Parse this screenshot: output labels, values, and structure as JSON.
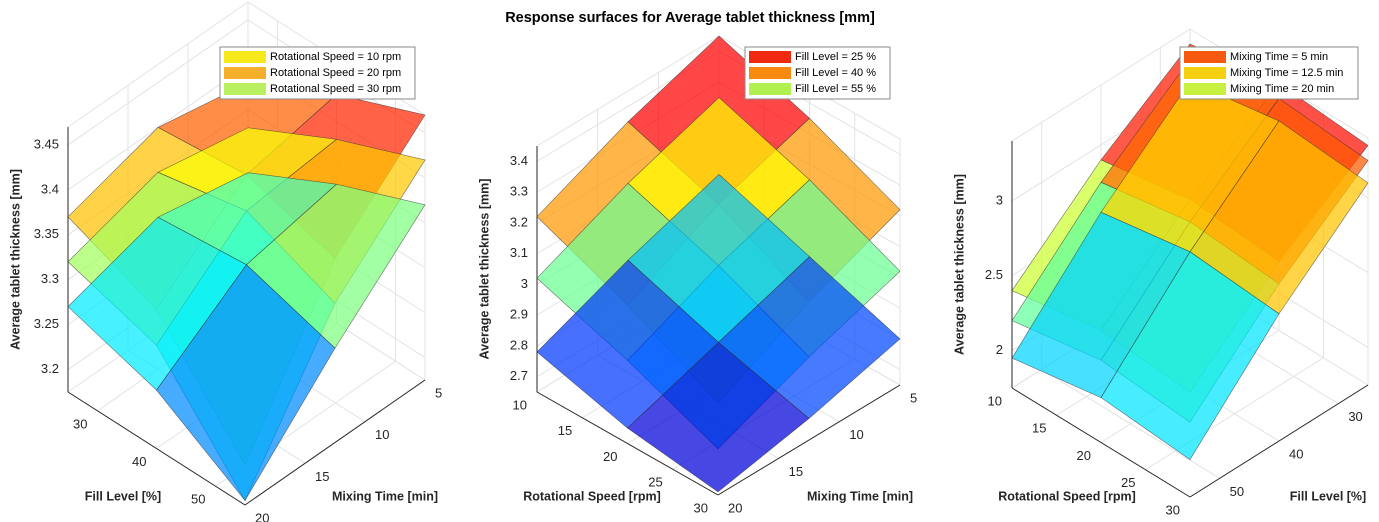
{
  "title": "Response surfaces for Average tablet thickness [mm]",
  "chart_data": [
    {
      "type": "surface3d",
      "xlabel": "Fill Level [%]",
      "ylabel": "Mixing Time [min]",
      "zlabel": "Average tablet thickness [mm]",
      "xlim": [
        25,
        55
      ],
      "ylim": [
        5,
        20
      ],
      "zlim": [
        3.175,
        3.47
      ],
      "xticks": [
        30,
        40,
        50
      ],
      "yticks": [
        5,
        10,
        15,
        20
      ],
      "zticks": [
        3.2,
        3.25,
        3.3,
        3.35,
        3.4,
        3.45
      ],
      "grid": true,
      "legend": "upper right",
      "x": [
        25,
        40,
        55
      ],
      "y": [
        5,
        12.5,
        20
      ],
      "series": [
        {
          "name": "Rotational Speed = 10 rpm",
          "color": "#f7e81c",
          "values": [
            [
              3.38,
              3.4,
              3.37
            ],
            [
              3.43,
              3.41,
              3.33
            ],
            [
              3.47,
              3.38,
              3.22
            ]
          ]
        },
        {
          "name": "Rotational Speed = 20 rpm",
          "color": "#f5b02b",
          "values": [
            [
              3.33,
              3.35,
              3.32
            ],
            [
              3.38,
              3.37,
              3.29
            ],
            [
              3.42,
              3.33,
              3.18
            ]
          ]
        },
        {
          "name": "Rotational Speed = 30 rpm",
          "color": "#b8f060",
          "values": [
            [
              3.28,
              3.3,
              3.27
            ],
            [
              3.33,
              3.31,
              3.24
            ],
            [
              3.37,
              3.28,
              3.18
            ]
          ]
        }
      ]
    },
    {
      "type": "surface3d",
      "xlabel": "Rotational Speed [rpm]",
      "ylabel": "Mixing Time [min]",
      "zlabel": "Average tablet thickness [mm]",
      "xlim": [
        10,
        30
      ],
      "ylim": [
        5,
        20
      ],
      "zlim": [
        2.65,
        3.45
      ],
      "xticks": [
        10,
        15,
        20,
        25,
        30
      ],
      "yticks": [
        5,
        10,
        15,
        20
      ],
      "zticks": [
        2.7,
        2.8,
        2.9,
        3,
        3.1,
        3.2,
        3.3,
        3.4
      ],
      "grid": true,
      "legend": "upper right",
      "x": [
        10,
        20,
        30
      ],
      "y": [
        5,
        12.5,
        20
      ],
      "series": [
        {
          "name": "Fill Level = 25 %",
          "color": "#f02a10",
          "values": [
            [
              3.45,
              3.35,
              3.22
            ],
            [
              3.35,
              3.25,
              3.1
            ],
            [
              3.22,
              3.1,
              2.95
            ]
          ]
        },
        {
          "name": "Fill Level = 40 %",
          "color": "#f98a10",
          "values": [
            [
              3.25,
              3.15,
              3.02
            ],
            [
              3.15,
              3.05,
              2.92
            ],
            [
              3.02,
              2.92,
              2.8
            ]
          ]
        },
        {
          "name": "Fill Level = 55 %",
          "color": "#b0f050",
          "values": [
            [
              3.0,
              2.9,
              2.78
            ],
            [
              2.9,
              2.8,
              2.7
            ],
            [
              2.8,
              2.72,
              2.66
            ]
          ]
        }
      ]
    },
    {
      "type": "surface3d",
      "xlabel": "Rotational Speed [rpm]",
      "ylabel": "Fill Level [%]",
      "zlabel": "Average tablet thickness [mm]",
      "xlim": [
        10,
        30
      ],
      "ylim": [
        25,
        55
      ],
      "zlim": [
        1.75,
        3.4
      ],
      "xticks": [
        10,
        15,
        20,
        25,
        30
      ],
      "yticks": [
        30,
        40,
        50
      ],
      "zticks": [
        2,
        2.5,
        3
      ],
      "grid": true,
      "legend": "upper right",
      "x": [
        10,
        20,
        30
      ],
      "y": [
        25,
        40,
        55
      ],
      "series": [
        {
          "name": "Mixing Time = 5 min",
          "color": "#f55a10",
          "values": [
            [
              3.3,
              2.9,
              2.4
            ],
            [
              3.4,
              3.0,
              2.5
            ],
            [
              3.35,
              2.95,
              2.45
            ]
          ]
        },
        {
          "name": "Mixing Time = 12.5 min",
          "color": "#f5d010",
          "values": [
            [
              3.2,
              2.75,
              2.2
            ],
            [
              3.3,
              2.85,
              2.3
            ],
            [
              3.25,
              2.8,
              2.25
            ]
          ]
        },
        {
          "name": "Mixing Time = 20 min",
          "color": "#c8f040",
          "values": [
            [
              3.05,
              2.55,
              1.95
            ],
            [
              3.15,
              2.65,
              2.05
            ],
            [
              3.1,
              2.6,
              2.0
            ]
          ]
        }
      ]
    }
  ]
}
